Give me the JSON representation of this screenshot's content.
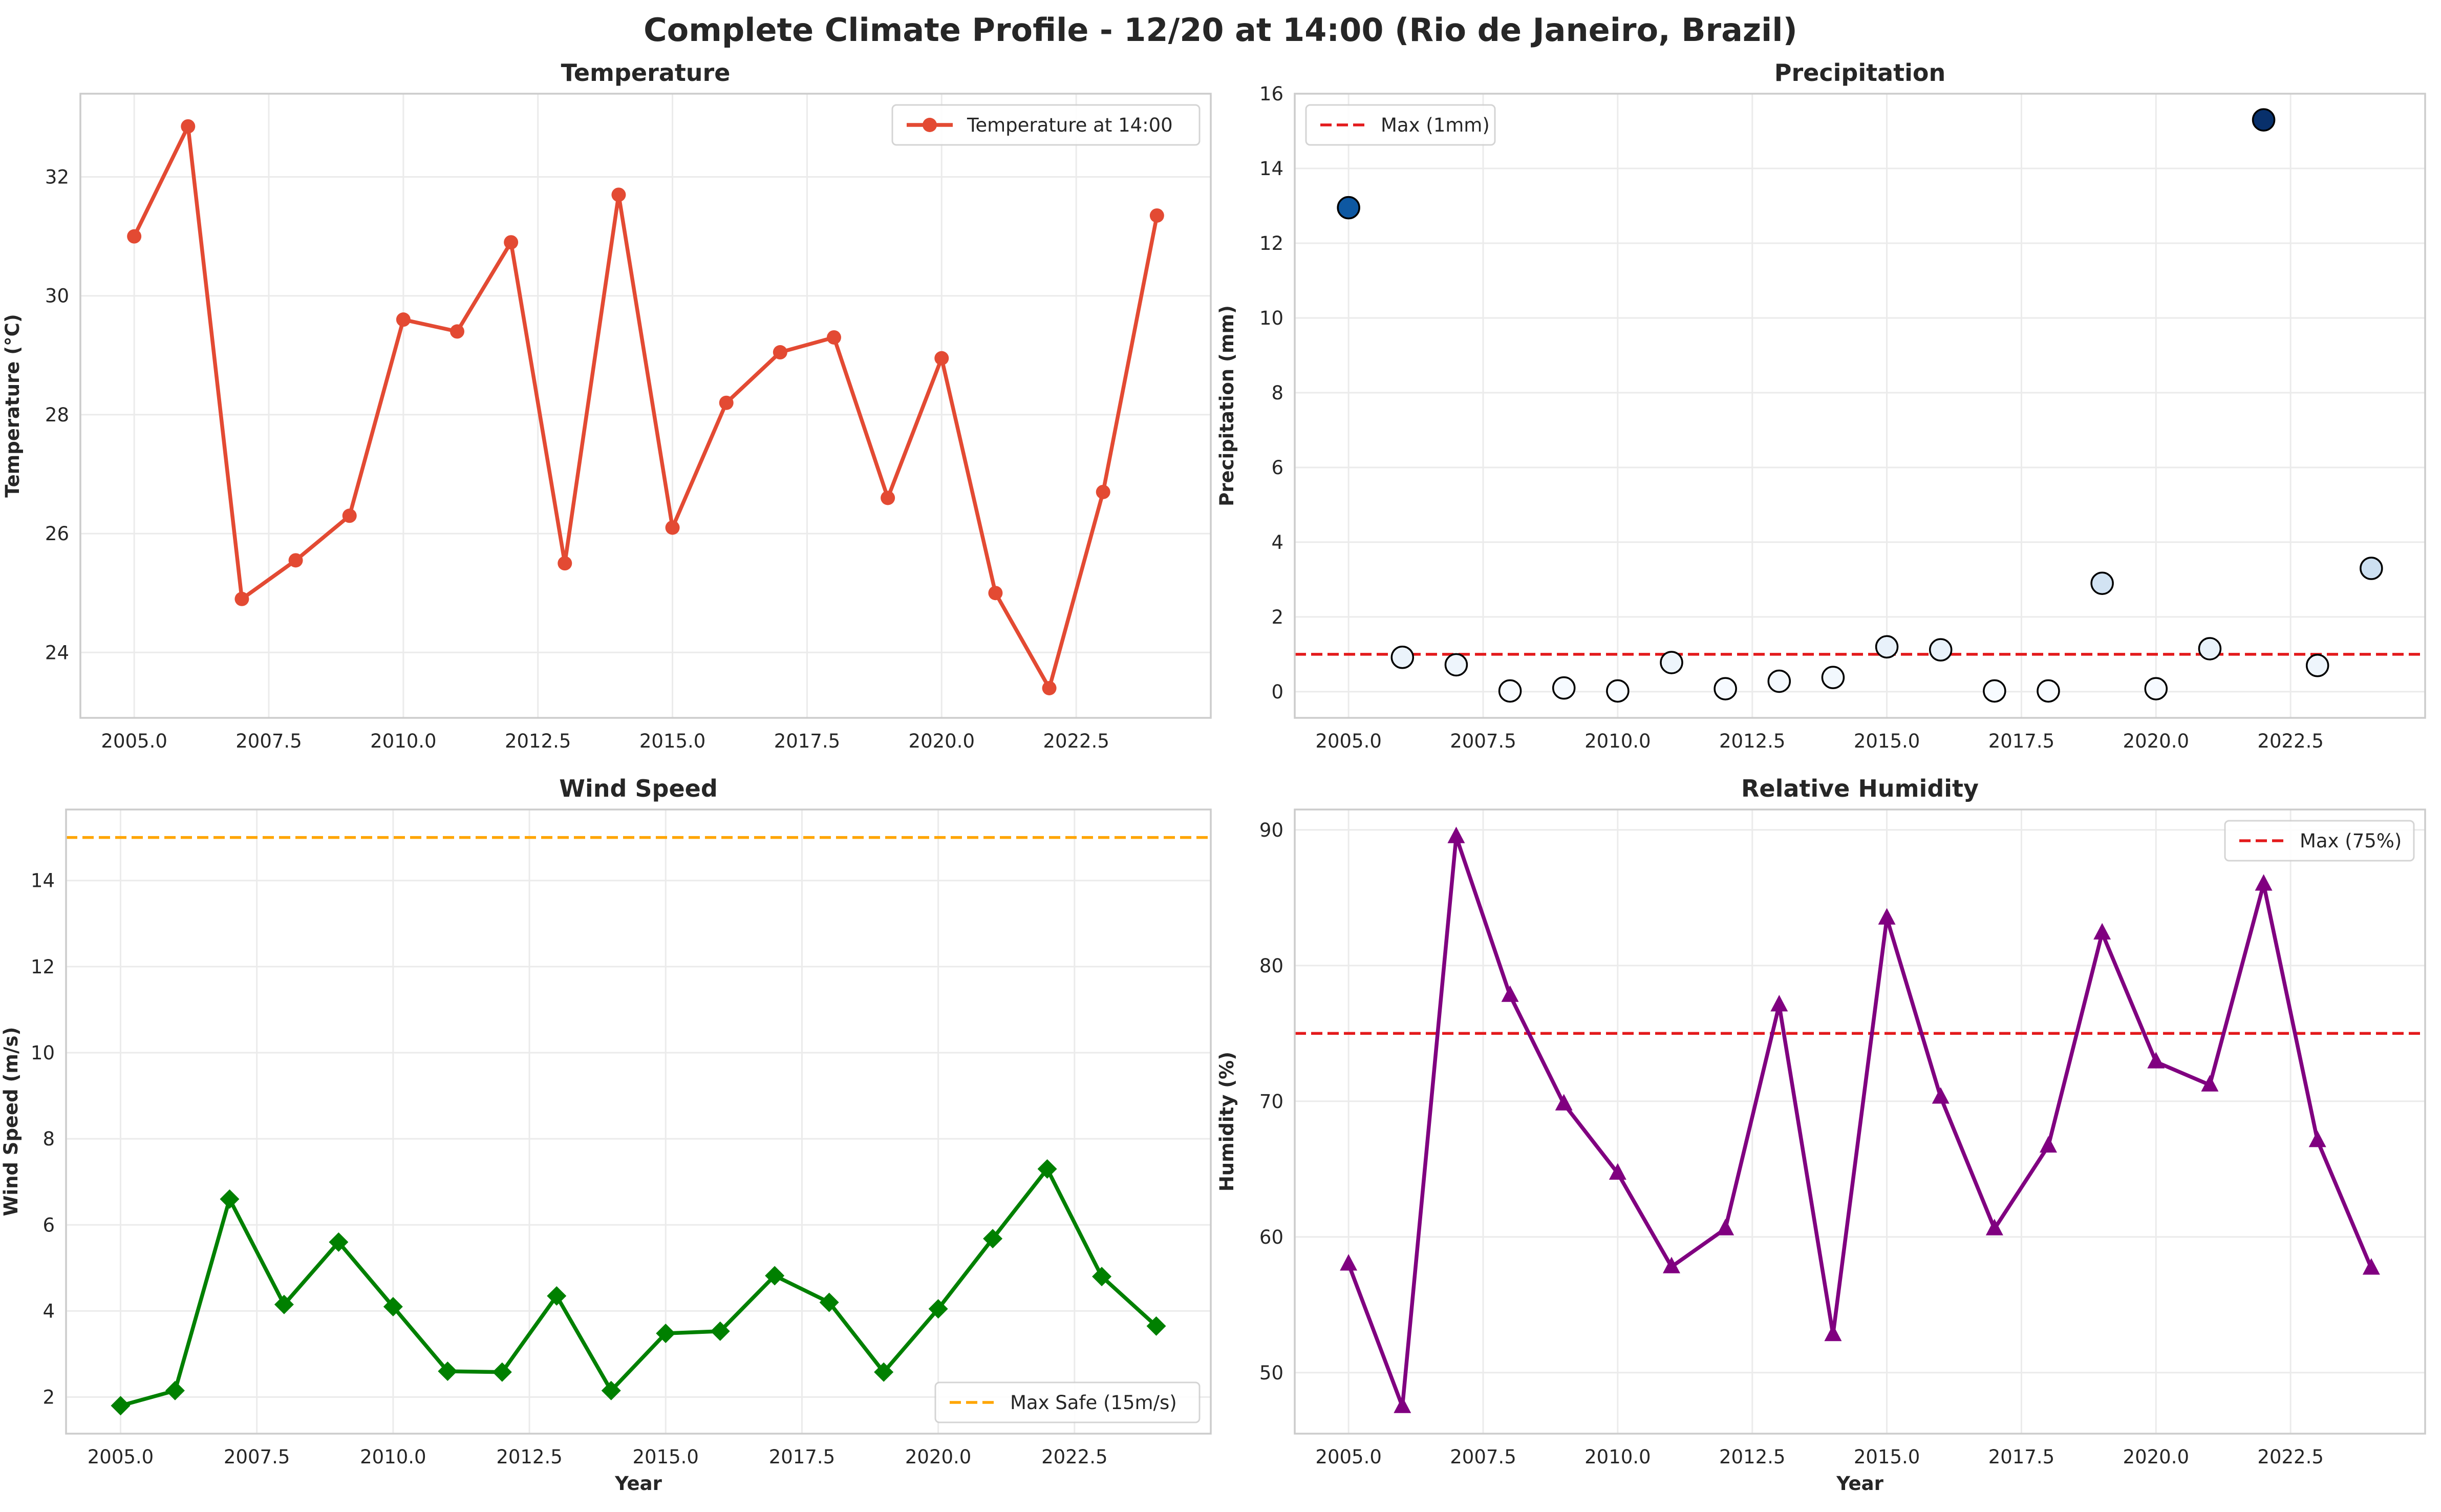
{
  "figure": {
    "suptitle": "Complete Climate Profile - 12/20 at 14:00 (Rio de Janeiro, Brazil)"
  },
  "colors": {
    "temperature": "#e34a33",
    "wind": "#008000",
    "humidity": "#800080",
    "max_line": "#e31a1c",
    "safe_line": "#ffa500",
    "grid": "#ebebeb",
    "spine": "#cccccc",
    "text": "#262626"
  },
  "chart_data": [
    {
      "id": "temperature",
      "type": "line",
      "title": "Temperature",
      "xlabel": "",
      "ylabel": "Temperature (°C)",
      "xlim": [
        2004.0,
        2025.0
      ],
      "ylim": [
        22.9,
        33.4
      ],
      "xticks": [
        2005.0,
        2007.5,
        2010.0,
        2012.5,
        2015.0,
        2017.5,
        2020.0,
        2022.5
      ],
      "xtick_labels": [
        "2005.0",
        "2007.5",
        "2010.0",
        "2012.5",
        "2015.0",
        "2017.5",
        "2020.0",
        "2022.5"
      ],
      "yticks": [
        24,
        26,
        28,
        30,
        32
      ],
      "ytick_labels": [
        "24",
        "26",
        "28",
        "30",
        "32"
      ],
      "grid": true,
      "legend": "upper right",
      "x": [
        2005,
        2006,
        2007,
        2008,
        2009,
        2010,
        2011,
        2012,
        2013,
        2014,
        2015,
        2016,
        2017,
        2018,
        2019,
        2020,
        2021,
        2022,
        2023,
        2024
      ],
      "series": [
        {
          "name": "Temperature at 14:00",
          "marker": "circle",
          "color": "#e34a33",
          "values": [
            31.0,
            32.85,
            24.9,
            25.55,
            26.3,
            29.6,
            29.4,
            30.9,
            25.5,
            31.7,
            26.1,
            28.2,
            29.05,
            29.3,
            26.6,
            28.95,
            25.0,
            23.4,
            26.7,
            31.35
          ]
        }
      ]
    },
    {
      "id": "precipitation",
      "type": "scatter",
      "title": "Precipitation",
      "xlabel": "",
      "ylabel": "Precipitation (mm)",
      "xlim": [
        2004.0,
        2025.0
      ],
      "ylim": [
        -0.7,
        16.0
      ],
      "xticks": [
        2005.0,
        2007.5,
        2010.0,
        2012.5,
        2015.0,
        2017.5,
        2020.0,
        2022.5
      ],
      "xtick_labels": [
        "2005.0",
        "2007.5",
        "2010.0",
        "2012.5",
        "2015.0",
        "2017.5",
        "2020.0",
        "2022.5"
      ],
      "yticks": [
        0,
        2,
        4,
        6,
        8,
        10,
        12,
        14,
        16
      ],
      "ytick_labels": [
        "0",
        "2",
        "4",
        "6",
        "8",
        "10",
        "12",
        "14",
        "16"
      ],
      "grid": true,
      "legend": "upper left",
      "colormap": "Blues",
      "x": [
        2005,
        2006,
        2007,
        2008,
        2009,
        2010,
        2011,
        2012,
        2013,
        2014,
        2015,
        2016,
        2017,
        2018,
        2019,
        2020,
        2021,
        2022,
        2023,
        2024
      ],
      "values": [
        12.95,
        0.92,
        0.72,
        0.02,
        0.1,
        0.02,
        0.78,
        0.08,
        0.28,
        0.38,
        1.2,
        1.12,
        0.02,
        0.02,
        2.9,
        0.08,
        1.15,
        15.3,
        0.7,
        3.3
      ],
      "reference_lines": [
        {
          "label": "Max (1mm)",
          "y": 1,
          "color": "#e31a1c",
          "style": "dashed"
        }
      ]
    },
    {
      "id": "wind",
      "type": "line",
      "title": "Wind Speed",
      "xlabel": "Year",
      "ylabel": "Wind Speed (m/s)",
      "xlim": [
        2004.0,
        2025.0
      ],
      "ylim": [
        1.15,
        15.65
      ],
      "xticks": [
        2005.0,
        2007.5,
        2010.0,
        2012.5,
        2015.0,
        2017.5,
        2020.0,
        2022.5
      ],
      "xtick_labels": [
        "2005.0",
        "2007.5",
        "2010.0",
        "2012.5",
        "2015.0",
        "2017.5",
        "2020.0",
        "2022.5"
      ],
      "yticks": [
        2,
        4,
        6,
        8,
        10,
        12,
        14
      ],
      "ytick_labels": [
        "2",
        "4",
        "6",
        "8",
        "10",
        "12",
        "14"
      ],
      "grid": true,
      "legend": "lower right",
      "x": [
        2005,
        2006,
        2007,
        2008,
        2009,
        2010,
        2011,
        2012,
        2013,
        2014,
        2015,
        2016,
        2017,
        2018,
        2019,
        2020,
        2021,
        2022,
        2023,
        2024
      ],
      "series": [
        {
          "name": "",
          "marker": "diamond",
          "color": "#008000",
          "values": [
            1.8,
            2.15,
            6.6,
            4.15,
            5.6,
            4.1,
            2.6,
            2.58,
            4.35,
            2.15,
            3.48,
            3.53,
            4.82,
            4.2,
            2.58,
            4.05,
            5.68,
            7.3,
            4.8,
            3.65
          ]
        }
      ],
      "reference_lines": [
        {
          "label": "Max Safe (15m/s)",
          "y": 15,
          "color": "#ffa500",
          "style": "dashed"
        }
      ]
    },
    {
      "id": "humidity",
      "type": "line",
      "title": "Relative Humidity",
      "xlabel": "Year",
      "ylabel": "Humidity (%)",
      "xlim": [
        2004.0,
        2025.0
      ],
      "ylim": [
        45.5,
        91.5
      ],
      "xticks": [
        2005.0,
        2007.5,
        2010.0,
        2012.5,
        2015.0,
        2017.5,
        2020.0,
        2022.5
      ],
      "xtick_labels": [
        "2005.0",
        "2007.5",
        "2010.0",
        "2012.5",
        "2015.0",
        "2017.5",
        "2020.0",
        "2022.5"
      ],
      "yticks": [
        50,
        60,
        70,
        80,
        90
      ],
      "ytick_labels": [
        "50",
        "60",
        "70",
        "80",
        "90"
      ],
      "grid": true,
      "legend": "upper right",
      "x": [
        2005,
        2006,
        2007,
        2008,
        2009,
        2010,
        2011,
        2012,
        2013,
        2014,
        2015,
        2016,
        2017,
        2018,
        2019,
        2020,
        2021,
        2022,
        2023,
        2024
      ],
      "series": [
        {
          "name": "",
          "marker": "triangle",
          "color": "#800080",
          "values": [
            58.0,
            47.5,
            89.5,
            77.8,
            69.8,
            64.7,
            57.8,
            60.6,
            77.1,
            52.8,
            83.5,
            70.3,
            60.6,
            66.7,
            82.4,
            72.9,
            71.2,
            86.0,
            67.1,
            57.7
          ]
        }
      ],
      "reference_lines": [
        {
          "label": "Max (75%)",
          "y": 75,
          "color": "#e31a1c",
          "style": "dashed"
        }
      ]
    }
  ]
}
